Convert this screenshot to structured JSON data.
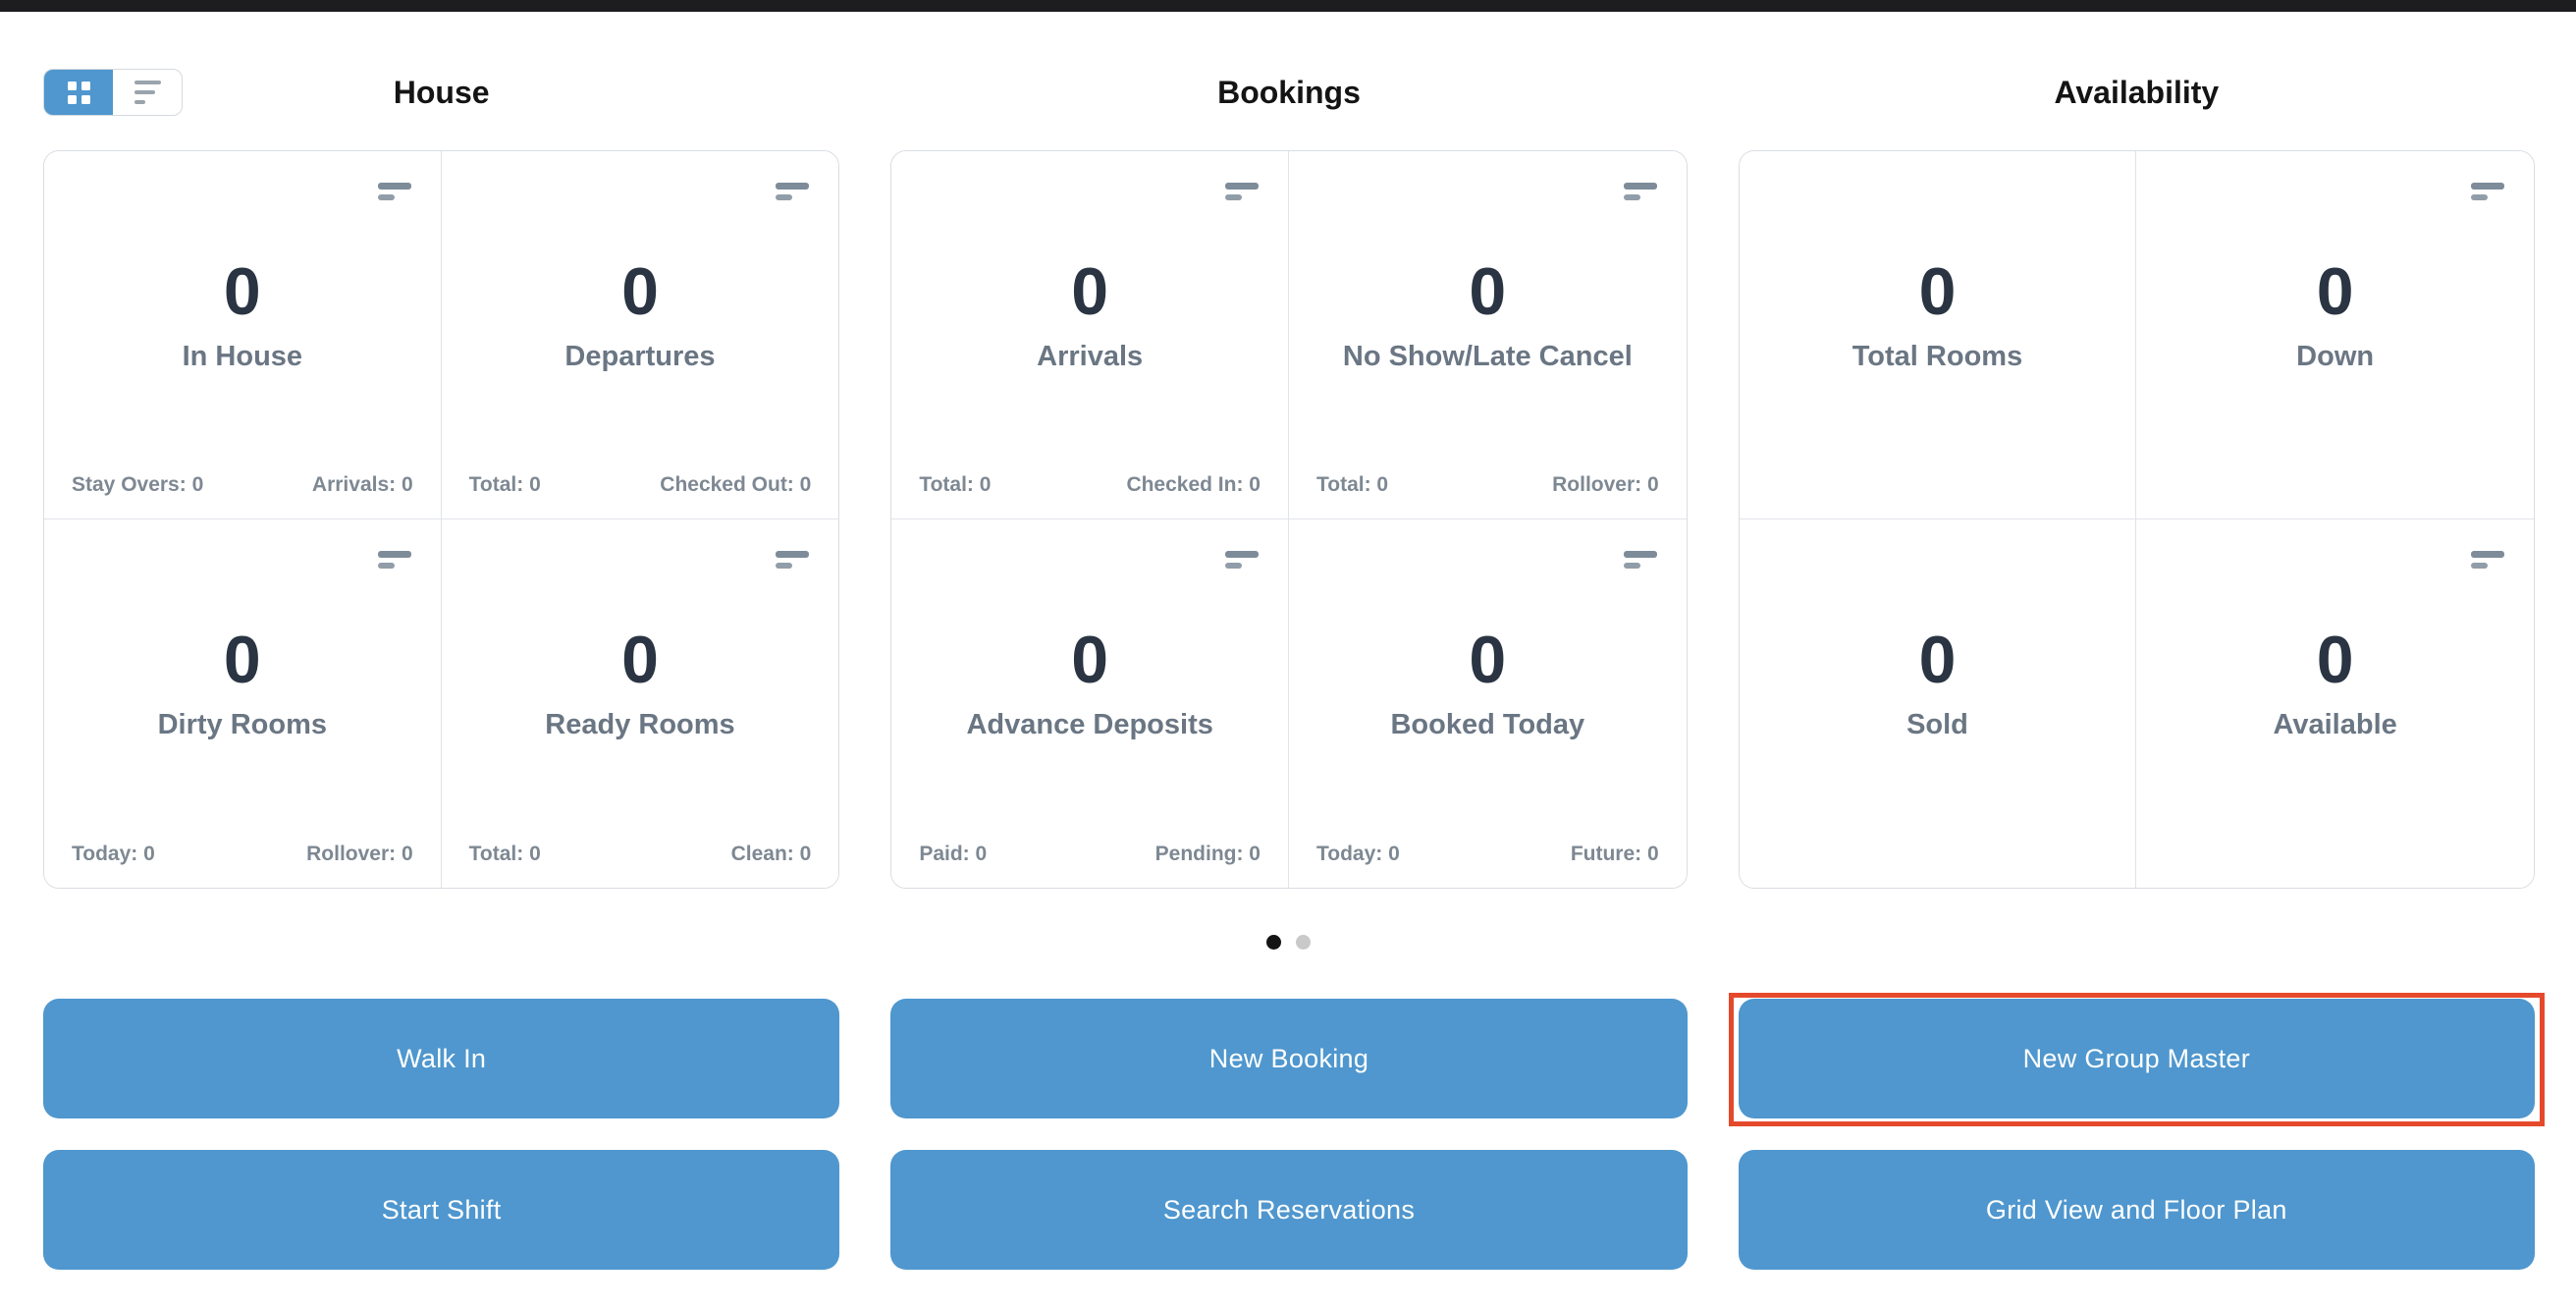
{
  "view_toggle": {
    "active_view": "grid",
    "grid_icon": "grid-view-icon",
    "list_icon": "list-view-icon"
  },
  "sections": [
    {
      "title": "House",
      "cards": [
        {
          "value": "0",
          "label": "In House",
          "stats": [
            "Stay Overs: 0",
            "Arrivals: 0"
          ]
        },
        {
          "value": "0",
          "label": "Departures",
          "stats": [
            "Total: 0",
            "Checked Out: 0"
          ]
        },
        {
          "value": "0",
          "label": "Dirty Rooms",
          "stats": [
            "Today: 0",
            "Rollover: 0"
          ]
        },
        {
          "value": "0",
          "label": "Ready Rooms",
          "stats": [
            "Total: 0",
            "Clean: 0"
          ]
        }
      ]
    },
    {
      "title": "Bookings",
      "cards": [
        {
          "value": "0",
          "label": "Arrivals",
          "stats": [
            "Total: 0",
            "Checked In: 0"
          ]
        },
        {
          "value": "0",
          "label": "No Show/Late Cancel",
          "stats": [
            "Total: 0",
            "Rollover: 0"
          ]
        },
        {
          "value": "0",
          "label": "Advance Deposits",
          "stats": [
            "Paid: 0",
            "Pending: 0"
          ]
        },
        {
          "value": "0",
          "label": "Booked Today",
          "stats": [
            "Today: 0",
            "Future: 0"
          ]
        }
      ]
    },
    {
      "title": "Availability",
      "cards": [
        {
          "value": "0",
          "label": "Total Rooms",
          "stats": []
        },
        {
          "value": "0",
          "label": "Down",
          "stats": []
        },
        {
          "value": "0",
          "label": "Sold",
          "stats": []
        },
        {
          "value": "0",
          "label": "Available",
          "stats": []
        }
      ]
    }
  ],
  "carousel": {
    "dot_count": 2,
    "active_index": 0
  },
  "actions": {
    "row1": [
      "Walk In",
      "New Booking",
      "New Group Master"
    ],
    "row2": [
      "Start Shift",
      "Search Reservations",
      "Grid View and Floor Plan"
    ],
    "highlighted_button": "New Group Master"
  },
  "colors": {
    "button_blue": "#4f97ce",
    "highlight_red": "#e5492c",
    "value_text": "#2a3442",
    "label_text": "#6a7683",
    "stat_text": "#7e8893",
    "icon_gray": "#7e8c99",
    "topbar": "#1d1d1f"
  }
}
